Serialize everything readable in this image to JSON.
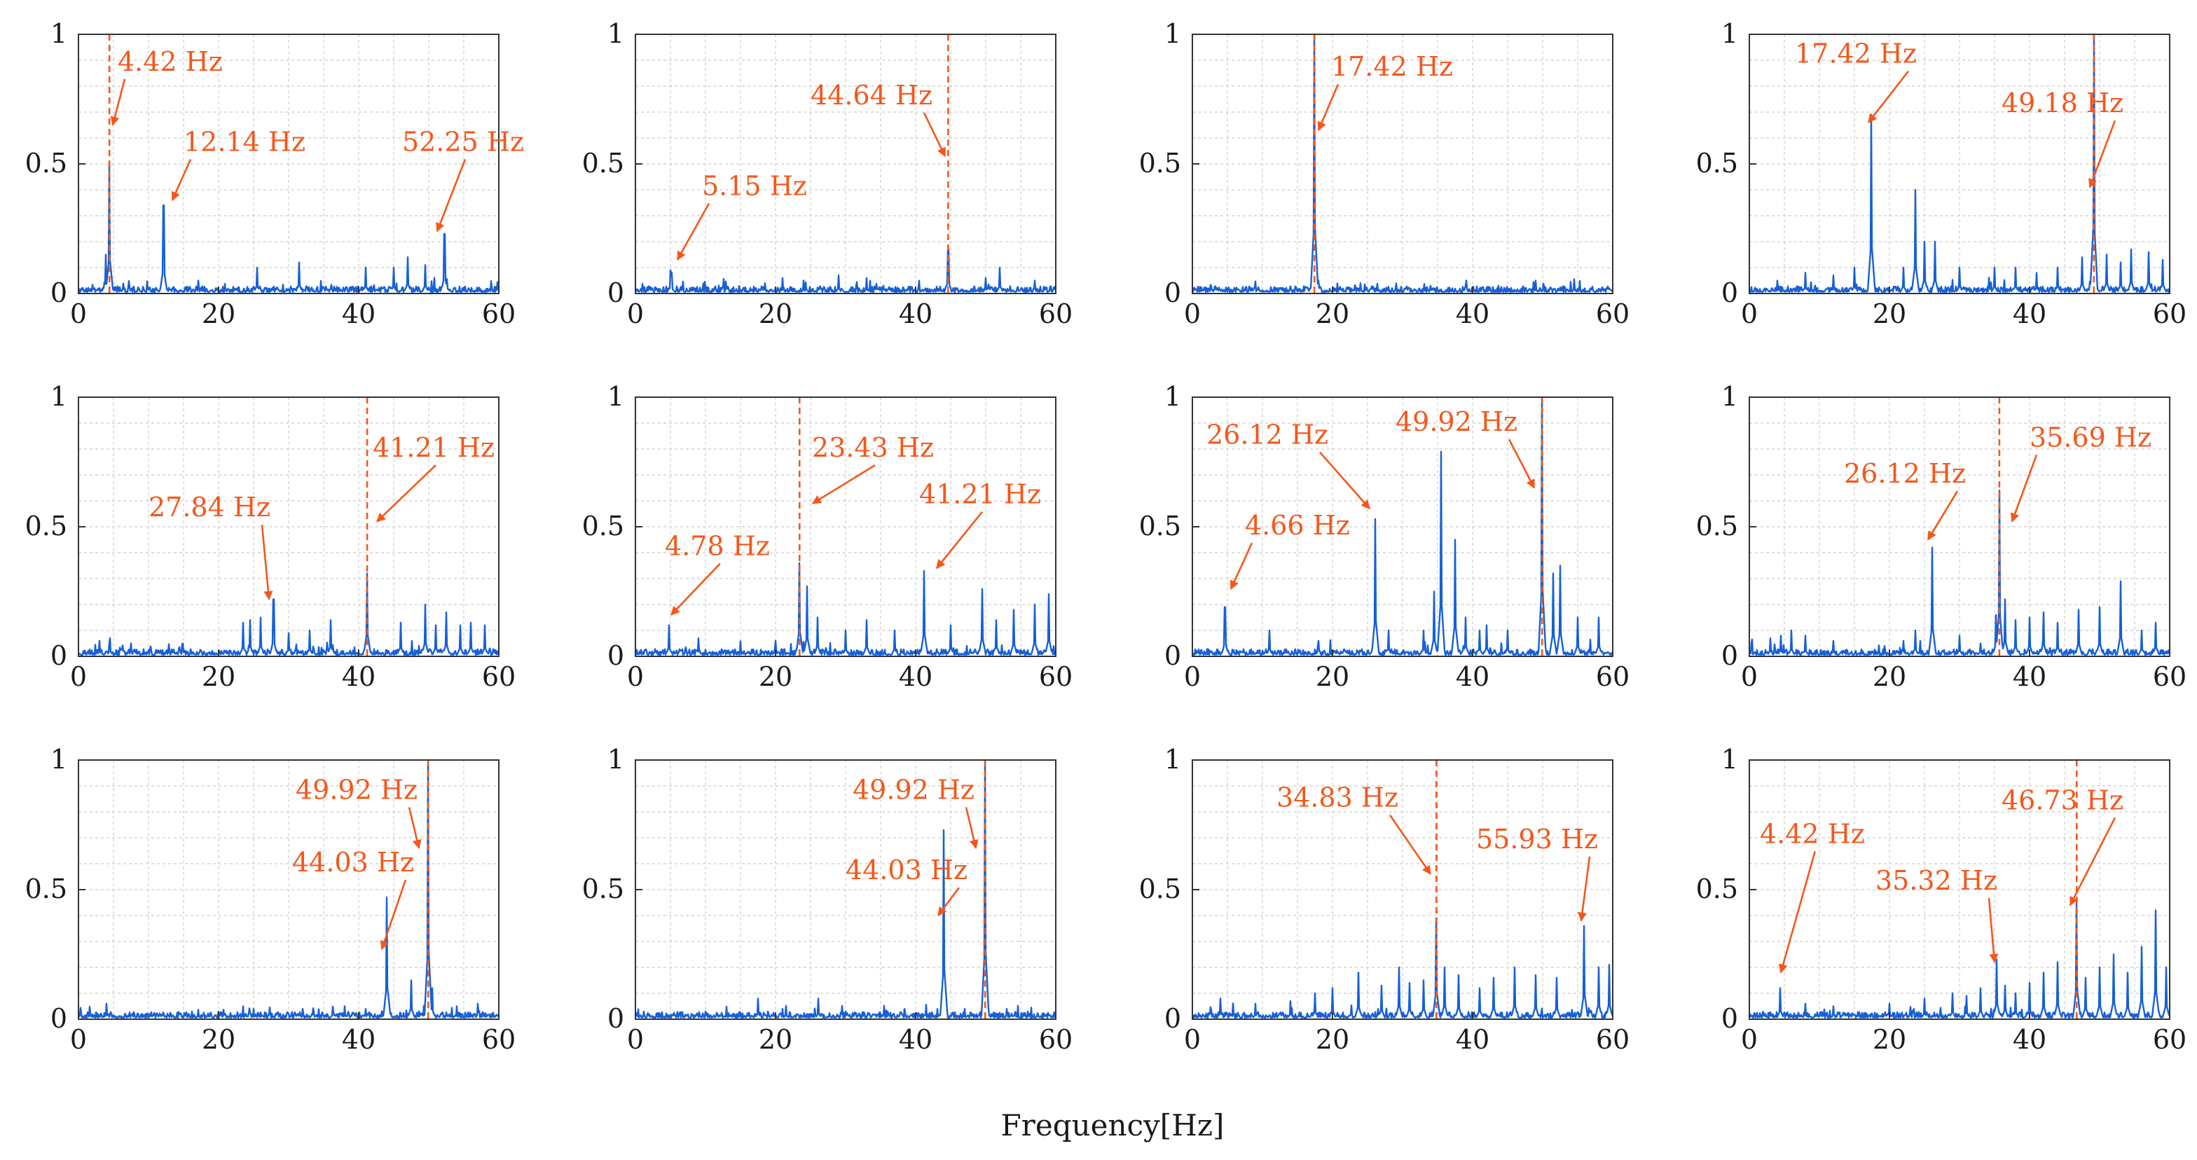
{
  "colors": {
    "signal": "#1660d8",
    "annotation": "#f5571a",
    "grid": "#d4d4d4",
    "axis": "#333333"
  },
  "figure": {
    "xlabel": "Frequency[Hz]"
  },
  "chart_data": [
    {
      "type": "line",
      "xlim": [
        0,
        60
      ],
      "ylim": [
        0,
        1
      ],
      "xticks": [
        "0",
        "20",
        "40",
        "60"
      ],
      "yticks": [
        "0",
        "0.5",
        "1"
      ],
      "markers": [
        4.42
      ],
      "peaks": [
        [
          3.9,
          0.15
        ],
        [
          4.42,
          0.5
        ],
        [
          12.14,
          0.34
        ],
        [
          25.5,
          0.1
        ],
        [
          31.5,
          0.12
        ],
        [
          41,
          0.1
        ],
        [
          45,
          0.1
        ],
        [
          47,
          0.14
        ],
        [
          49.5,
          0.11
        ],
        [
          52.25,
          0.23
        ]
      ],
      "annotations": [
        {
          "label": "4.42 Hz",
          "x": 5.6,
          "y": 0.86,
          "ax": 4.9,
          "ay": 0.65
        },
        {
          "label": "12.14 Hz",
          "x": 15,
          "y": 0.55,
          "ax": 13.4,
          "ay": 0.36
        },
        {
          "label": "52.25 Hz",
          "x": 46.2,
          "y": 0.55,
          "ax": 51.2,
          "ay": 0.24
        }
      ]
    },
    {
      "type": "line",
      "xlim": [
        0,
        60
      ],
      "ylim": [
        0,
        1
      ],
      "xticks": [
        "0",
        "20",
        "40",
        "60"
      ],
      "yticks": [
        "0",
        "0.5",
        "1"
      ],
      "markers": [
        44.64
      ],
      "peaks": [
        [
          5,
          0.09
        ],
        [
          5.15,
          0.08
        ],
        [
          18.5,
          0.04
        ],
        [
          21,
          0.06
        ],
        [
          24,
          0.05
        ],
        [
          29,
          0.07
        ],
        [
          33,
          0.06
        ],
        [
          44.64,
          0.17
        ],
        [
          50,
          0.06
        ],
        [
          52,
          0.1
        ],
        [
          57,
          0.05
        ]
      ],
      "annotations": [
        {
          "label": "5.15 Hz",
          "x": 9.5,
          "y": 0.38,
          "ax": 6,
          "ay": 0.13
        },
        {
          "label": "44.64 Hz",
          "x": 25,
          "y": 0.73,
          "ax": 44.2,
          "ay": 0.53
        }
      ]
    },
    {
      "type": "line",
      "xlim": [
        0,
        60
      ],
      "ylim": [
        0,
        1
      ],
      "xticks": [
        "0",
        "20",
        "40",
        "60"
      ],
      "yticks": [
        "0",
        "0.5",
        "1"
      ],
      "markers": [
        17.42
      ],
      "peaks": [
        [
          17.42,
          1.0
        ],
        [
          18,
          0.05
        ],
        [
          24,
          0.04
        ],
        [
          34,
          0.03
        ],
        [
          39,
          0.03
        ],
        [
          49,
          0.05
        ]
      ],
      "annotations": [
        {
          "label": "17.42 Hz",
          "x": 19.8,
          "y": 0.84,
          "ax": 18,
          "ay": 0.63
        }
      ]
    },
    {
      "type": "line",
      "xlim": [
        0,
        60
      ],
      "ylim": [
        0,
        1
      ],
      "xticks": [
        "0",
        "20",
        "40",
        "60"
      ],
      "yticks": [
        "0",
        "0.5",
        "1"
      ],
      "markers": [
        49.18
      ],
      "peaks": [
        [
          4,
          0.05
        ],
        [
          8,
          0.08
        ],
        [
          12,
          0.07
        ],
        [
          15,
          0.1
        ],
        [
          17.42,
          0.69
        ],
        [
          22,
          0.1
        ],
        [
          23.7,
          0.4
        ],
        [
          25,
          0.2
        ],
        [
          26.5,
          0.2
        ],
        [
          30,
          0.1
        ],
        [
          35,
          0.1
        ],
        [
          38,
          0.1
        ],
        [
          41,
          0.08
        ],
        [
          44,
          0.1
        ],
        [
          47.5,
          0.14
        ],
        [
          49.18,
          1.0
        ],
        [
          51,
          0.15
        ],
        [
          53,
          0.12
        ],
        [
          54.5,
          0.17
        ],
        [
          57,
          0.16
        ],
        [
          59,
          0.13
        ]
      ],
      "annotations": [
        {
          "label": "17.42 Hz",
          "x": 6.5,
          "y": 0.89,
          "ax": 17,
          "ay": 0.66
        },
        {
          "label": "49.18 Hz",
          "x": 36,
          "y": 0.7,
          "ax": 48.6,
          "ay": 0.41
        }
      ]
    },
    {
      "type": "line",
      "xlim": [
        0,
        60
      ],
      "ylim": [
        0,
        1
      ],
      "xticks": [
        "0",
        "20",
        "40",
        "60"
      ],
      "yticks": [
        "0",
        "0.5",
        "1"
      ],
      "markers": [
        41.21
      ],
      "peaks": [
        [
          3,
          0.06
        ],
        [
          4.5,
          0.07
        ],
        [
          7.5,
          0.05
        ],
        [
          23.5,
          0.13
        ],
        [
          24.5,
          0.14
        ],
        [
          26,
          0.15
        ],
        [
          27.84,
          0.22
        ],
        [
          30,
          0.09
        ],
        [
          33,
          0.1
        ],
        [
          36,
          0.14
        ],
        [
          41.21,
          0.32
        ],
        [
          46,
          0.13
        ],
        [
          49.5,
          0.2
        ],
        [
          51,
          0.12
        ],
        [
          52.5,
          0.17
        ],
        [
          54.5,
          0.12
        ],
        [
          56,
          0.13
        ],
        [
          58,
          0.12
        ]
      ],
      "annotations": [
        {
          "label": "27.84 Hz",
          "x": 10,
          "y": 0.54,
          "ax": 27.2,
          "ay": 0.22
        },
        {
          "label": "41.21 Hz",
          "x": 42,
          "y": 0.77,
          "ax": 42.6,
          "ay": 0.52
        }
      ]
    },
    {
      "type": "line",
      "xlim": [
        0,
        60
      ],
      "ylim": [
        0,
        1
      ],
      "xticks": [
        "0",
        "20",
        "40",
        "60"
      ],
      "yticks": [
        "0",
        "0.5",
        "1"
      ],
      "markers": [
        23.43
      ],
      "peaks": [
        [
          4.78,
          0.12
        ],
        [
          9,
          0.07
        ],
        [
          20,
          0.06
        ],
        [
          23.43,
          0.36
        ],
        [
          24.5,
          0.27
        ],
        [
          26,
          0.15
        ],
        [
          30,
          0.1
        ],
        [
          33,
          0.14
        ],
        [
          37,
          0.1
        ],
        [
          41.21,
          0.33
        ],
        [
          45,
          0.12
        ],
        [
          49.5,
          0.26
        ],
        [
          51.5,
          0.14
        ],
        [
          54,
          0.18
        ],
        [
          57,
          0.2
        ],
        [
          59,
          0.24
        ]
      ],
      "annotations": [
        {
          "label": "4.78 Hz",
          "x": 4.2,
          "y": 0.39,
          "ax": 5.1,
          "ay": 0.16
        },
        {
          "label": "23.43 Hz",
          "x": 25.2,
          "y": 0.77,
          "ax": 25.3,
          "ay": 0.59
        },
        {
          "label": "41.21 Hz",
          "x": 40.5,
          "y": 0.59,
          "ax": 43,
          "ay": 0.34
        }
      ]
    },
    {
      "type": "line",
      "xlim": [
        0,
        60
      ],
      "ylim": [
        0,
        1
      ],
      "xticks": [
        "0",
        "20",
        "40",
        "60"
      ],
      "yticks": [
        "0",
        "0.5",
        "1"
      ],
      "markers": [
        49.92
      ],
      "peaks": [
        [
          4.66,
          0.19
        ],
        [
          11,
          0.1
        ],
        [
          18,
          0.06
        ],
        [
          26.12,
          0.53
        ],
        [
          28,
          0.1
        ],
        [
          33,
          0.1
        ],
        [
          34.5,
          0.25
        ],
        [
          35.5,
          0.79
        ],
        [
          37.5,
          0.45
        ],
        [
          39,
          0.15
        ],
        [
          41,
          0.1
        ],
        [
          42,
          0.12
        ],
        [
          45,
          0.1
        ],
        [
          49.92,
          1.0
        ],
        [
          51.5,
          0.32
        ],
        [
          52.5,
          0.35
        ],
        [
          55,
          0.15
        ],
        [
          58,
          0.15
        ]
      ],
      "annotations": [
        {
          "label": "4.66 Hz",
          "x": 7.5,
          "y": 0.47,
          "ax": 5.5,
          "ay": 0.26
        },
        {
          "label": "26.12 Hz",
          "x": 2,
          "y": 0.82,
          "ax": 25.3,
          "ay": 0.57
        },
        {
          "label": "49.92 Hz",
          "x": 29,
          "y": 0.87,
          "ax": 48.8,
          "ay": 0.65
        }
      ]
    },
    {
      "type": "line",
      "xlim": [
        0,
        60
      ],
      "ylim": [
        0,
        1
      ],
      "xticks": [
        "0",
        "20",
        "40",
        "60"
      ],
      "yticks": [
        "0",
        "0.5",
        "1"
      ],
      "markers": [
        35.69
      ],
      "peaks": [
        [
          3,
          0.07
        ],
        [
          4.5,
          0.08
        ],
        [
          6,
          0.1
        ],
        [
          8,
          0.08
        ],
        [
          12,
          0.06
        ],
        [
          22,
          0.06
        ],
        [
          23.7,
          0.1
        ],
        [
          26.12,
          0.42
        ],
        [
          30,
          0.08
        ],
        [
          33,
          0.05
        ],
        [
          35.2,
          0.16
        ],
        [
          35.69,
          0.64
        ],
        [
          36.5,
          0.22
        ],
        [
          38,
          0.14
        ],
        [
          40,
          0.15
        ],
        [
          42,
          0.17
        ],
        [
          44,
          0.13
        ],
        [
          47,
          0.18
        ],
        [
          50,
          0.19
        ],
        [
          53,
          0.29
        ],
        [
          56,
          0.1
        ],
        [
          58,
          0.13
        ]
      ],
      "annotations": [
        {
          "label": "26.12 Hz",
          "x": 13.5,
          "y": 0.67,
          "ax": 25.5,
          "ay": 0.45
        },
        {
          "label": "35.69 Hz",
          "x": 40,
          "y": 0.81,
          "ax": 37.5,
          "ay": 0.52
        }
      ]
    },
    {
      "type": "line",
      "xlim": [
        0,
        60
      ],
      "ylim": [
        0,
        1
      ],
      "xticks": [
        "0",
        "20",
        "40",
        "60"
      ],
      "yticks": [
        "0",
        "0.5",
        "1"
      ],
      "markers": [
        49.92
      ],
      "peaks": [
        [
          4,
          0.06
        ],
        [
          20,
          0.03
        ],
        [
          25,
          0.04
        ],
        [
          32,
          0.04
        ],
        [
          38,
          0.05
        ],
        [
          41,
          0.04
        ],
        [
          44.03,
          0.47
        ],
        [
          47.5,
          0.15
        ],
        [
          49.92,
          1.0
        ],
        [
          50.5,
          0.12
        ],
        [
          54,
          0.05
        ],
        [
          57,
          0.06
        ]
      ],
      "annotations": [
        {
          "label": "44.03 Hz",
          "x": 30.5,
          "y": 0.57,
          "ax": 43.3,
          "ay": 0.27
        },
        {
          "label": "49.92 Hz",
          "x": 31,
          "y": 0.85,
          "ax": 48.6,
          "ay": 0.66
        }
      ]
    },
    {
      "type": "line",
      "xlim": [
        0,
        60
      ],
      "ylim": [
        0,
        1
      ],
      "xticks": [
        "0",
        "20",
        "40",
        "60"
      ],
      "yticks": [
        "0",
        "0.5",
        "1"
      ],
      "markers": [
        49.92
      ],
      "peaks": [
        [
          10,
          0.03
        ],
        [
          17.5,
          0.08
        ],
        [
          21,
          0.04
        ],
        [
          26.12,
          0.08
        ],
        [
          30,
          0.03
        ],
        [
          36,
          0.03
        ],
        [
          44.03,
          0.73
        ],
        [
          47,
          0.04
        ],
        [
          49.92,
          1.0
        ],
        [
          53,
          0.04
        ],
        [
          56,
          0.03
        ]
      ],
      "annotations": [
        {
          "label": "44.03 Hz",
          "x": 30,
          "y": 0.54,
          "ax": 43.2,
          "ay": 0.4
        },
        {
          "label": "49.92 Hz",
          "x": 31,
          "y": 0.85,
          "ax": 48.6,
          "ay": 0.66
        }
      ]
    },
    {
      "type": "line",
      "xlim": [
        0,
        60
      ],
      "ylim": [
        0,
        1
      ],
      "xticks": [
        "0",
        "20",
        "40",
        "60"
      ],
      "yticks": [
        "0",
        "0.5",
        "1"
      ],
      "markers": [
        34.83
      ],
      "peaks": [
        [
          4,
          0.08
        ],
        [
          9,
          0.06
        ],
        [
          14,
          0.07
        ],
        [
          17.5,
          0.1
        ],
        [
          20,
          0.12
        ],
        [
          23.7,
          0.18
        ],
        [
          27,
          0.13
        ],
        [
          29.5,
          0.2
        ],
        [
          31,
          0.14
        ],
        [
          33,
          0.15
        ],
        [
          34.83,
          0.39
        ],
        [
          36,
          0.2
        ],
        [
          38,
          0.17
        ],
        [
          41,
          0.12
        ],
        [
          43,
          0.16
        ],
        [
          46,
          0.2
        ],
        [
          49,
          0.17
        ],
        [
          52,
          0.16
        ],
        [
          55.93,
          0.36
        ],
        [
          58,
          0.2
        ],
        [
          59.5,
          0.21
        ]
      ],
      "annotations": [
        {
          "label": "34.83 Hz",
          "x": 12,
          "y": 0.82,
          "ax": 34,
          "ay": 0.56
        },
        {
          "label": "55.93 Hz",
          "x": 40.5,
          "y": 0.66,
          "ax": 55.5,
          "ay": 0.38
        }
      ]
    },
    {
      "type": "line",
      "xlim": [
        0,
        60
      ],
      "ylim": [
        0,
        1
      ],
      "xticks": [
        "0",
        "20",
        "40",
        "60"
      ],
      "yticks": [
        "0",
        "0.5",
        "1"
      ],
      "markers": [
        46.73
      ],
      "peaks": [
        [
          4.42,
          0.12
        ],
        [
          8,
          0.06
        ],
        [
          12,
          0.05
        ],
        [
          20,
          0.06
        ],
        [
          25,
          0.08
        ],
        [
          29,
          0.1
        ],
        [
          31,
          0.09
        ],
        [
          33,
          0.12
        ],
        [
          35.32,
          0.23
        ],
        [
          36.5,
          0.13
        ],
        [
          38,
          0.1
        ],
        [
          40,
          0.14
        ],
        [
          42,
          0.18
        ],
        [
          44,
          0.22
        ],
        [
          46.73,
          0.45
        ],
        [
          48,
          0.16
        ],
        [
          50,
          0.2
        ],
        [
          52,
          0.25
        ],
        [
          54,
          0.18
        ],
        [
          56,
          0.28
        ],
        [
          58,
          0.42
        ],
        [
          59.5,
          0.2
        ]
      ],
      "annotations": [
        {
          "label": "4.42 Hz",
          "x": 1.5,
          "y": 0.68,
          "ax": 4.5,
          "ay": 0.18
        },
        {
          "label": "35.32 Hz",
          "x": 18,
          "y": 0.5,
          "ax": 35,
          "ay": 0.22
        },
        {
          "label": "46.73 Hz",
          "x": 36,
          "y": 0.81,
          "ax": 45.8,
          "ay": 0.44
        }
      ]
    }
  ]
}
